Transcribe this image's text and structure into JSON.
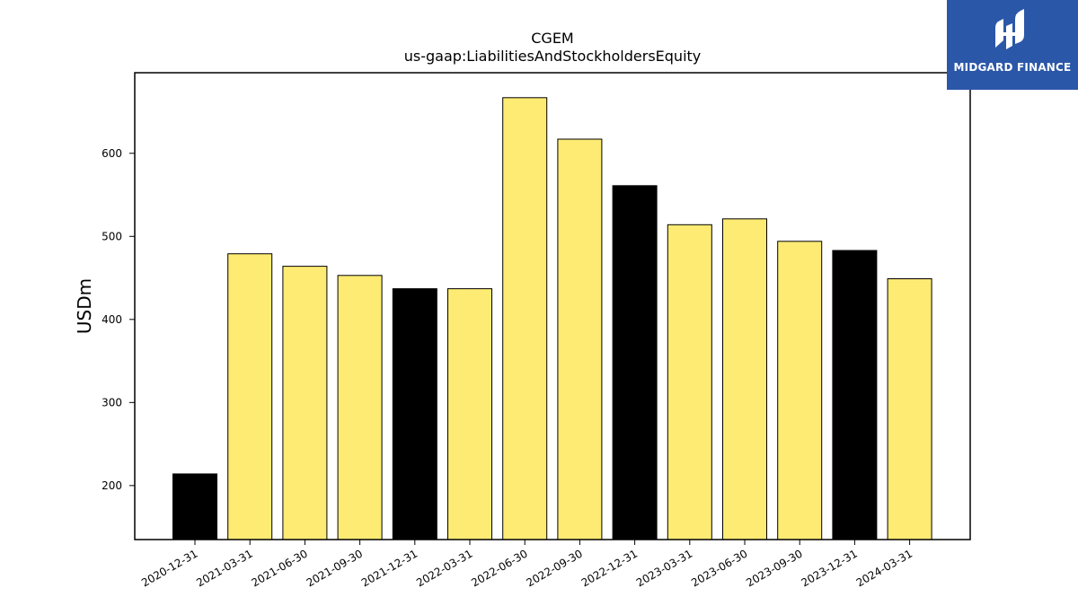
{
  "brand": {
    "name": "MIDGARD FINANCE",
    "logo_icon": "midgard-logo-icon",
    "bg_color": "#2b57a8"
  },
  "colors": {
    "highlight": "#000000",
    "normal": "#fdeb73",
    "edge": "#000000"
  },
  "chart_data": {
    "type": "bar",
    "title": "CGEM",
    "subtitle": "us-gaap:LiabilitiesAndStockholdersEquity",
    "xlabel": "",
    "ylabel": "USDm",
    "categories": [
      "2020-12-31",
      "2021-03-31",
      "2021-06-30",
      "2021-09-30",
      "2021-12-31",
      "2022-03-31",
      "2022-06-30",
      "2022-09-30",
      "2022-12-31",
      "2023-03-31",
      "2023-06-30",
      "2023-09-30",
      "2023-12-31",
      "2024-03-31"
    ],
    "values": [
      214,
      479,
      464,
      453,
      437,
      437,
      667,
      617,
      561,
      514,
      521,
      494,
      483,
      449
    ],
    "highlight": [
      true,
      false,
      false,
      false,
      true,
      false,
      false,
      false,
      true,
      false,
      false,
      false,
      true,
      false
    ],
    "ylim": [
      135,
      697
    ],
    "yticks": [
      200,
      300,
      400,
      500,
      600
    ],
    "grid": false
  }
}
